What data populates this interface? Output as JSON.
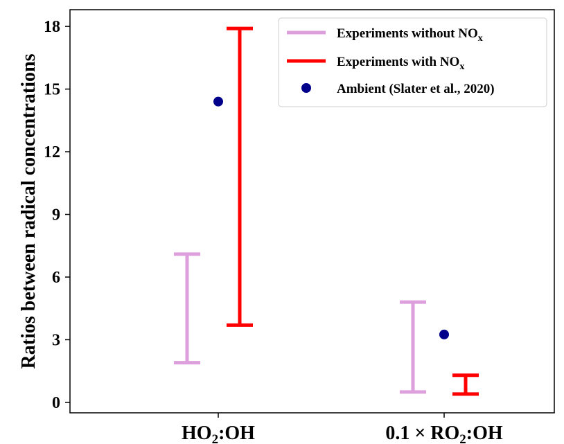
{
  "chart_data": {
    "type": "errorbar",
    "ylabel": "Ratios between radical concentrations",
    "ylim": [
      -0.5,
      18.8
    ],
    "yticks": [
      0,
      3,
      6,
      9,
      12,
      15,
      18
    ],
    "categories": [
      {
        "base": "HO",
        "sub": "2",
        "rest": ":OH"
      },
      {
        "prefix": "0.1 × RO",
        "sub": "2",
        "rest": ":OH"
      }
    ],
    "series": [
      {
        "name": {
          "main": "Experiments without NO",
          "sub": "x"
        },
        "kind": "range",
        "color": "#dda0dd",
        "ranges": [
          {
            "category": 0,
            "low": 1.9,
            "high": 7.1
          },
          {
            "category": 1,
            "low": 0.5,
            "high": 4.8
          }
        ]
      },
      {
        "name": {
          "main": "Experiments with NO",
          "sub": "x"
        },
        "kind": "range",
        "color": "#ff0000",
        "ranges": [
          {
            "category": 0,
            "low": 3.7,
            "high": 17.9
          },
          {
            "category": 1,
            "low": 0.4,
            "high": 1.3
          }
        ]
      },
      {
        "name": {
          "main": "Ambient (Slater et al., 2020)"
        },
        "kind": "point",
        "color": "#00008b",
        "points": [
          {
            "category": 0,
            "value": 14.4
          },
          {
            "category": 1,
            "value": 3.25
          }
        ]
      }
    ],
    "legend_position": "top-right",
    "grid": false
  }
}
